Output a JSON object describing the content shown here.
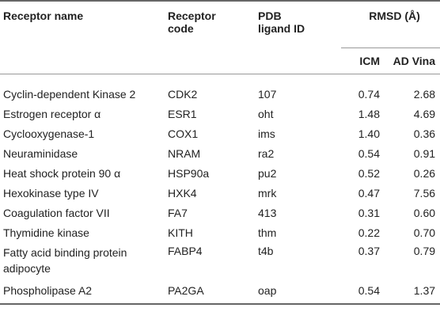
{
  "headers": {
    "receptor_name": "Receptor name",
    "receptor_code_l1": "Receptor",
    "receptor_code_l2": "code",
    "pdb_l1": "PDB",
    "pdb_l2": "ligand ID",
    "rmsd": "RMSD (Å)",
    "icm": "ICM",
    "ad_vina": "AD Vina"
  },
  "rows": [
    {
      "name": "Cyclin-dependent Kinase 2",
      "code": "CDK2",
      "ligand": "107",
      "icm": "0.74",
      "vina": "2.68"
    },
    {
      "name": "Estrogen receptor α",
      "code": "ESR1",
      "ligand": "oht",
      "icm": "1.48",
      "vina": "4.69"
    },
    {
      "name": "Cyclooxygenase-1",
      "code": "COX1",
      "ligand": "ims",
      "icm": "1.40",
      "vina": "0.36"
    },
    {
      "name": "Neuraminidase",
      "code": "NRAM",
      "ligand": "ra2",
      "icm": "0.54",
      "vina": "0.91"
    },
    {
      "name": "Heat shock protein 90 α",
      "code": "HSP90a",
      "ligand": "pu2",
      "icm": "0.52",
      "vina": "0.26"
    },
    {
      "name": "Hexokinase type IV",
      "code": "HXK4",
      "ligand": "mrk",
      "icm": "0.47",
      "vina": "7.56"
    },
    {
      "name": "Coagulation factor VII",
      "code": "FA7",
      "ligand": "413",
      "icm": "0.31",
      "vina": "0.60"
    },
    {
      "name": "Thymidine kinase",
      "code": "KITH",
      "ligand": "thm",
      "icm": "0.22",
      "vina": "0.70"
    },
    {
      "name": "Fatty acid binding protein adipocyte",
      "code": "FABP4",
      "ligand": "t4b",
      "icm": "0.37",
      "vina": "0.79"
    },
    {
      "name": "Phospholipase A2",
      "code": "PA2GA",
      "ligand": "oap",
      "icm": "0.54",
      "vina": "1.37"
    }
  ]
}
